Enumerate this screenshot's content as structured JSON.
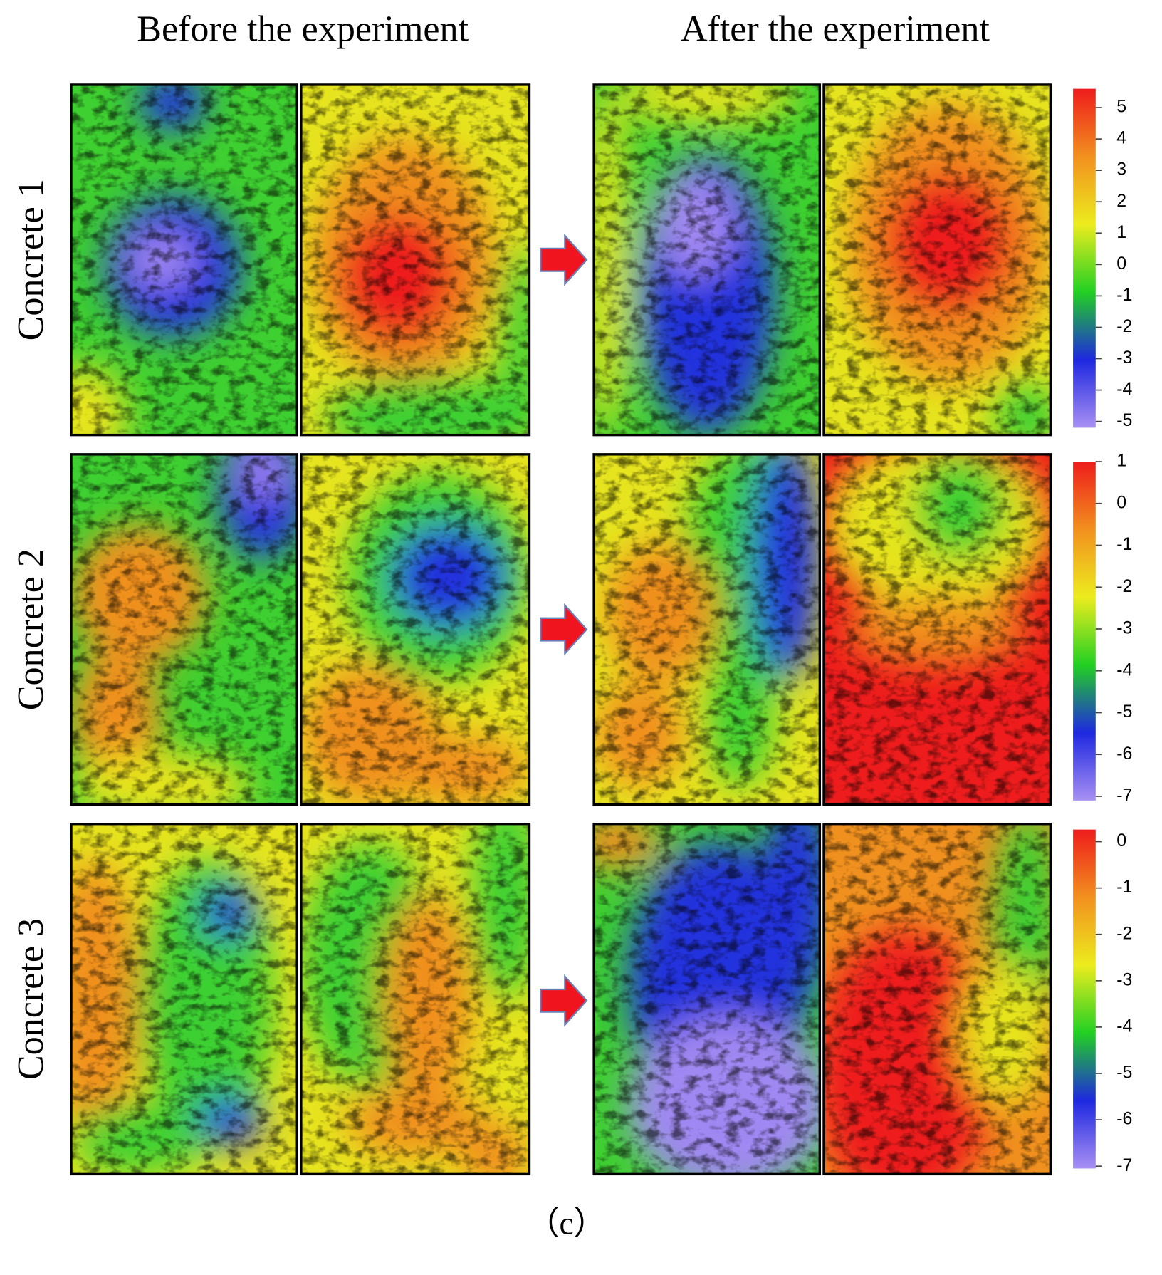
{
  "headers": [
    "Before the experiment",
    "After the experiment"
  ],
  "rows": [
    {
      "label": "Concrete 1",
      "colorbar": {
        "range": [
          -5.2,
          5.6
        ],
        "ticks": [
          5,
          4,
          3,
          2,
          1,
          0,
          -1,
          -2,
          -3,
          -4,
          -5
        ]
      }
    },
    {
      "label": "Concrete 2",
      "colorbar": {
        "range": [
          -7.1,
          1
        ],
        "ticks": [
          1,
          0,
          -1,
          -2,
          -3,
          -4,
          -5,
          -6,
          -7
        ]
      }
    },
    {
      "label": "Concrete 3",
      "colorbar": {
        "range": [
          -7.05,
          0.26
        ],
        "ticks": [
          0,
          -1,
          -2,
          -3,
          -4,
          -5,
          -6,
          -7
        ]
      }
    }
  ],
  "caption": "（c）"
}
